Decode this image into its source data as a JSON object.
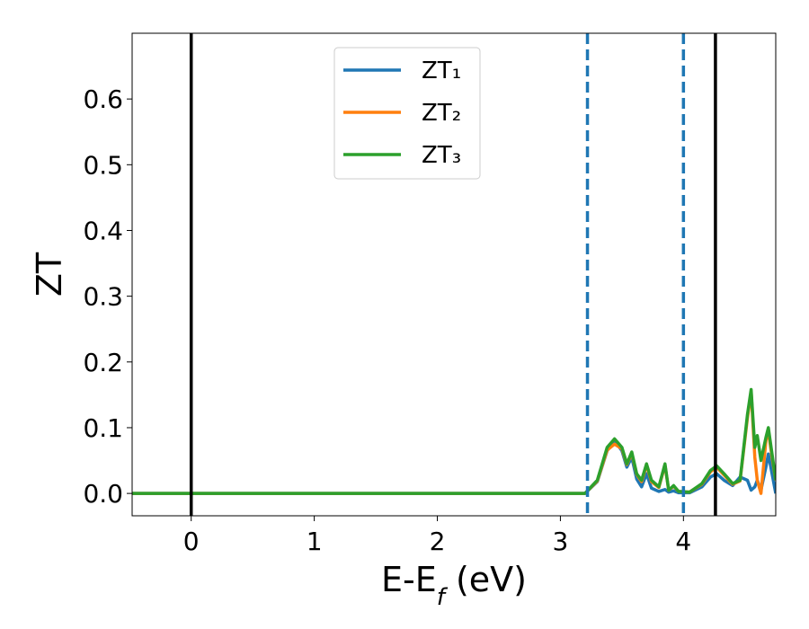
{
  "chart_data": {
    "type": "line",
    "xlabel": [
      "E-E",
      "f",
      " (eV)"
    ],
    "ylabel": "ZT",
    "x": [
      -0.48,
      3.0,
      3.2,
      3.3,
      3.38,
      3.44,
      3.5,
      3.54,
      3.58,
      3.62,
      3.66,
      3.7,
      3.74,
      3.8,
      3.85,
      3.88,
      3.92,
      3.96,
      4.05,
      4.15,
      4.22,
      4.27,
      4.33,
      4.4,
      4.46,
      4.52,
      4.55,
      4.58,
      4.6,
      4.63,
      4.67,
      4.69,
      4.72,
      4.75
    ],
    "series": [
      {
        "name": "ZT₁",
        "color": "#1f77b4",
        "values": [
          0,
          0,
          0,
          0.018,
          0.065,
          0.08,
          0.065,
          0.04,
          0.055,
          0.022,
          0.01,
          0.03,
          0.008,
          0.003,
          0.006,
          0.002,
          0.004,
          0.001,
          0.001,
          0.01,
          0.025,
          0.03,
          0.02,
          0.012,
          0.025,
          0.02,
          0.005,
          0.01,
          0.02,
          0.005,
          0.04,
          0.06,
          0.03,
          0.0
        ]
      },
      {
        "name": "ZT₂",
        "color": "#ff7f0e",
        "values": [
          0,
          0,
          0,
          0.019,
          0.066,
          0.075,
          0.068,
          0.044,
          0.061,
          0.029,
          0.018,
          0.043,
          0.018,
          0.009,
          0.043,
          0.005,
          0.011,
          0.003,
          0.002,
          0.014,
          0.033,
          0.04,
          0.028,
          0.014,
          0.019,
          0.115,
          0.155,
          0.055,
          0.02,
          0.0,
          0.08,
          0.095,
          0.055,
          0.02
        ]
      },
      {
        "name": "ZT₃",
        "color": "#2ca02c",
        "values": [
          0,
          0,
          0,
          0.02,
          0.07,
          0.083,
          0.07,
          0.045,
          0.063,
          0.03,
          0.02,
          0.045,
          0.02,
          0.01,
          0.045,
          0.005,
          0.012,
          0.003,
          0.002,
          0.015,
          0.035,
          0.042,
          0.03,
          0.015,
          0.02,
          0.12,
          0.158,
          0.07,
          0.088,
          0.05,
          0.085,
          0.1,
          0.06,
          0.02
        ]
      }
    ],
    "vlines": [
      {
        "x": 0,
        "color": "#000000",
        "style": "solid"
      },
      {
        "x": 3.22,
        "color": "#1f77b4",
        "style": "dashed"
      },
      {
        "x": 4.0,
        "color": "#1f77b4",
        "style": "dashed"
      },
      {
        "x": 4.26,
        "color": "#000000",
        "style": "solid"
      }
    ],
    "xlim": [
      -0.48,
      4.75
    ],
    "ylim": [
      -0.034,
      0.7
    ],
    "xticks": [
      0,
      1,
      2,
      3,
      4
    ],
    "yticks": [
      {
        "value": 0,
        "label": "0.0"
      },
      0.1,
      0.2,
      0.3,
      0.4,
      0.5,
      0.6
    ],
    "legend": "upper center"
  }
}
